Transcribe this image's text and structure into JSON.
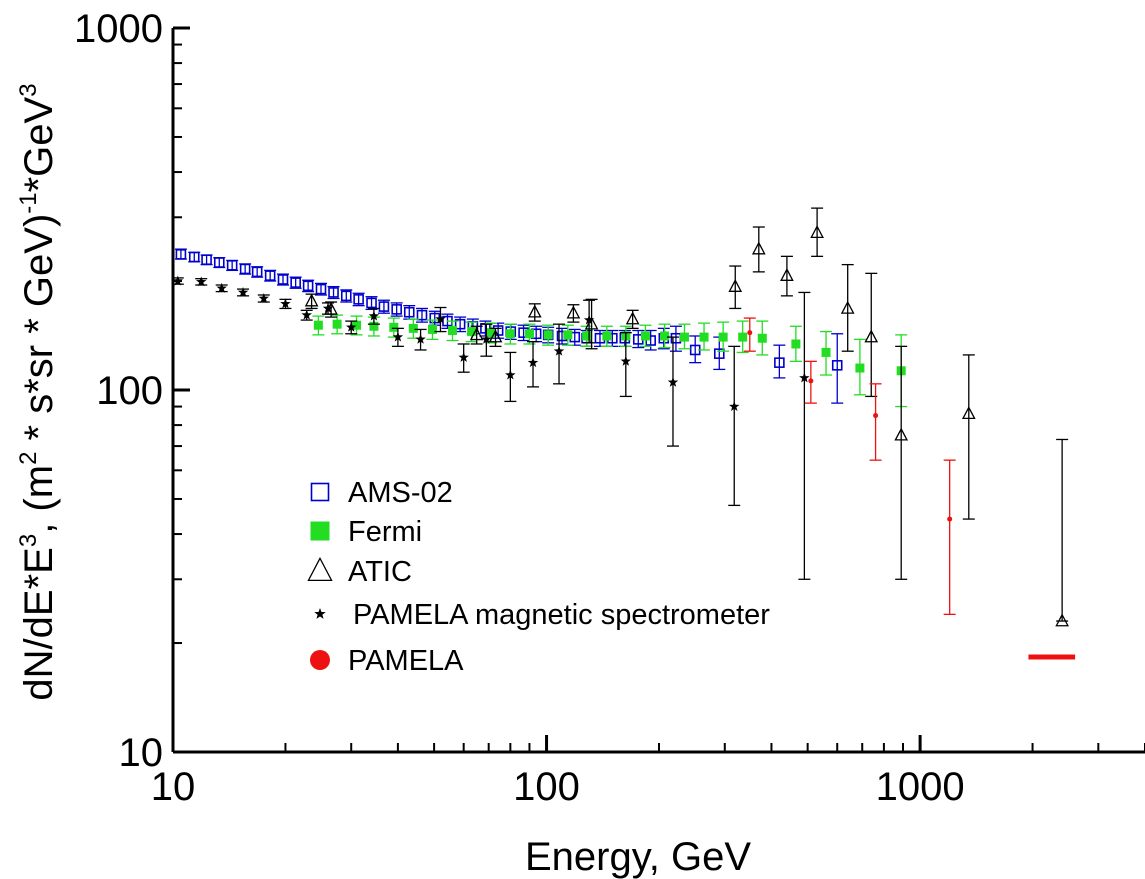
{
  "chart_data": {
    "type": "scatter",
    "title": "",
    "xlabel": "Energy, GeV",
    "ylabel_parts": {
      "a": "dN/dE*E",
      "a_sup": "3",
      "b": ", (m",
      "b_sup": "2",
      "c": " * s*sr * GeV)",
      "c_sup": "-1",
      "d": "*GeV",
      "d_sup": "3"
    },
    "x_scale": "log",
    "y_scale": "log",
    "xlim": [
      10,
      4000
    ],
    "ylim": [
      10,
      1000
    ],
    "x_ticks": [
      10,
      100,
      1000
    ],
    "x_tick_labels": [
      "10",
      "100",
      "1000"
    ],
    "y_ticks": [
      10,
      100,
      1000
    ],
    "y_tick_labels": [
      "10",
      "100",
      "1000"
    ],
    "grid": false,
    "legend_position": "lower-left",
    "series": [
      {
        "name": "AMS-02",
        "marker": "open-square",
        "color": "#0000cc",
        "points": [
          [
            10.5,
            237,
            230,
            245
          ],
          [
            11.4,
            233,
            226,
            240
          ],
          [
            12.3,
            229,
            222,
            236
          ],
          [
            13.3,
            225,
            218,
            232
          ],
          [
            14.4,
            221,
            214,
            228
          ],
          [
            15.6,
            216,
            209,
            223
          ],
          [
            16.8,
            212,
            205,
            219
          ],
          [
            18.2,
            207,
            200,
            214
          ],
          [
            19.7,
            202,
            195,
            209
          ],
          [
            21.3,
            198,
            191,
            205
          ],
          [
            23.0,
            194,
            187,
            201
          ],
          [
            24.9,
            190,
            183,
            197
          ],
          [
            26.9,
            186,
            179,
            193
          ],
          [
            29.1,
            182,
            175,
            189
          ],
          [
            31.4,
            178,
            171,
            185
          ],
          [
            34.0,
            174,
            167,
            181
          ],
          [
            36.7,
            170,
            163,
            177
          ],
          [
            39.7,
            167,
            160,
            174
          ],
          [
            42.9,
            164,
            157,
            171
          ],
          [
            46.4,
            161,
            154,
            168
          ],
          [
            50.2,
            158,
            151,
            165
          ],
          [
            54.3,
            155,
            148,
            162
          ],
          [
            58.7,
            152,
            145,
            159
          ],
          [
            63.5,
            150,
            143,
            157
          ],
          [
            68.6,
            148,
            141,
            155
          ],
          [
            74.2,
            146,
            139,
            153
          ],
          [
            80.2,
            145,
            138,
            152
          ],
          [
            86.8,
            144,
            137,
            151
          ],
          [
            93.8,
            143,
            136,
            150
          ],
          [
            101,
            142,
            135,
            149
          ],
          [
            110,
            141,
            134,
            148
          ],
          [
            119,
            140,
            133,
            147
          ],
          [
            128,
            139,
            132,
            146
          ],
          [
            139,
            139,
            132,
            146
          ],
          [
            150,
            139,
            132,
            146
          ],
          [
            162,
            139,
            132,
            146
          ],
          [
            176,
            138,
            131,
            146
          ],
          [
            190,
            137,
            129,
            146
          ],
          [
            206,
            139,
            130,
            148
          ],
          [
            222,
            139,
            128,
            150
          ],
          [
            250,
            129,
            119,
            141
          ],
          [
            290,
            126,
            114,
            140
          ],
          [
            420,
            119,
            108,
            133
          ],
          [
            600,
            117,
            92,
            143
          ]
        ]
      },
      {
        "name": "Fermi",
        "marker": "filled-square",
        "color": "#22dd22",
        "points": [
          [
            24.5,
            151,
            142,
            160
          ],
          [
            27.5,
            152,
            143,
            161
          ],
          [
            31,
            151,
            142,
            160
          ],
          [
            34.5,
            150,
            141,
            159
          ],
          [
            39,
            149,
            140,
            158
          ],
          [
            44,
            148,
            139,
            157
          ],
          [
            49.5,
            147,
            138,
            156
          ],
          [
            56,
            146,
            137,
            155
          ],
          [
            63,
            145,
            136,
            154
          ],
          [
            71,
            144,
            135,
            153
          ],
          [
            80,
            143,
            134,
            152
          ],
          [
            90,
            143,
            134,
            152
          ],
          [
            101,
            142,
            133,
            151
          ],
          [
            114,
            142,
            133,
            151
          ],
          [
            128,
            141,
            132,
            150
          ],
          [
            145,
            141,
            132,
            150
          ],
          [
            163,
            141,
            132,
            150
          ],
          [
            184,
            141,
            132,
            151
          ],
          [
            207,
            141,
            131,
            152
          ],
          [
            234,
            140,
            130,
            152
          ],
          [
            264,
            140,
            129,
            153
          ],
          [
            297,
            140,
            128,
            154
          ],
          [
            335,
            140,
            127,
            155
          ],
          [
            378,
            139,
            125,
            155
          ],
          [
            465,
            134,
            120,
            150
          ],
          [
            560,
            127,
            110,
            145
          ],
          [
            690,
            115,
            97,
            138
          ],
          [
            890,
            113,
            90,
            142
          ]
        ]
      },
      {
        "name": "ATIC",
        "marker": "open-triangle",
        "color": "#000000",
        "points": [
          [
            23.5,
            176,
            168,
            184
          ],
          [
            26.5,
            167,
            159,
            175
          ],
          [
            65,
            142,
            134,
            150
          ],
          [
            73,
            140,
            132,
            148
          ],
          [
            93,
            164,
            155,
            173
          ],
          [
            118,
            163,
            154,
            172
          ],
          [
            132,
            152,
            130,
            178
          ],
          [
            170,
            157,
            148,
            166
          ],
          [
            320,
            193,
            168,
            220
          ],
          [
            370,
            245,
            212,
            282
          ],
          [
            440,
            207,
            182,
            234
          ],
          [
            530,
            272,
            234,
            318
          ],
          [
            640,
            168,
            128,
            222
          ],
          [
            740,
            140,
            96,
            210
          ],
          [
            890,
            75,
            30,
            132
          ],
          [
            1350,
            86,
            44,
            125
          ],
          [
            2400,
            23,
            23,
            73
          ]
        ]
      },
      {
        "name": "PAMELA magnetic spectrometer",
        "marker": "star",
        "color": "#000000",
        "points": [
          [
            10.3,
            200,
            196,
            204
          ],
          [
            11.9,
            199,
            195,
            203
          ],
          [
            13.5,
            191,
            187,
            195
          ],
          [
            15.4,
            186,
            182,
            190
          ],
          [
            17.5,
            179,
            175,
            183
          ],
          [
            20,
            173,
            168,
            178
          ],
          [
            22.8,
            161,
            156,
            166
          ],
          [
            26,
            168,
            162,
            174
          ],
          [
            30,
            149,
            143,
            155
          ],
          [
            34.5,
            160,
            152,
            168
          ],
          [
            40,
            140,
            132,
            148
          ],
          [
            46,
            138,
            129,
            147
          ],
          [
            52,
            157,
            145,
            169
          ],
          [
            60,
            123,
            112,
            134
          ],
          [
            69,
            138,
            124,
            152
          ],
          [
            80,
            110,
            93,
            127
          ],
          [
            92,
            119,
            102,
            136
          ],
          [
            108,
            128,
            104,
            152
          ],
          [
            130,
            156,
            135,
            177
          ],
          [
            163,
            120,
            96,
            144
          ],
          [
            218,
            105,
            70,
            140
          ],
          [
            318,
            90,
            48,
            132
          ],
          [
            490,
            108,
            30,
            186
          ]
        ]
      },
      {
        "name": "PAMELA",
        "marker": "filled-circle",
        "color": "#ee1111",
        "points": [
          [
            350,
            144,
            128,
            158
          ],
          [
            510,
            106,
            92,
            120
          ],
          [
            760,
            85,
            64,
            104
          ],
          [
            1200,
            44,
            24,
            64
          ],
          [
            2250,
            18.3,
            18.3,
            18.3
          ]
        ],
        "x_bars": [
          [
            2250,
            1950,
            2600
          ]
        ]
      }
    ]
  }
}
